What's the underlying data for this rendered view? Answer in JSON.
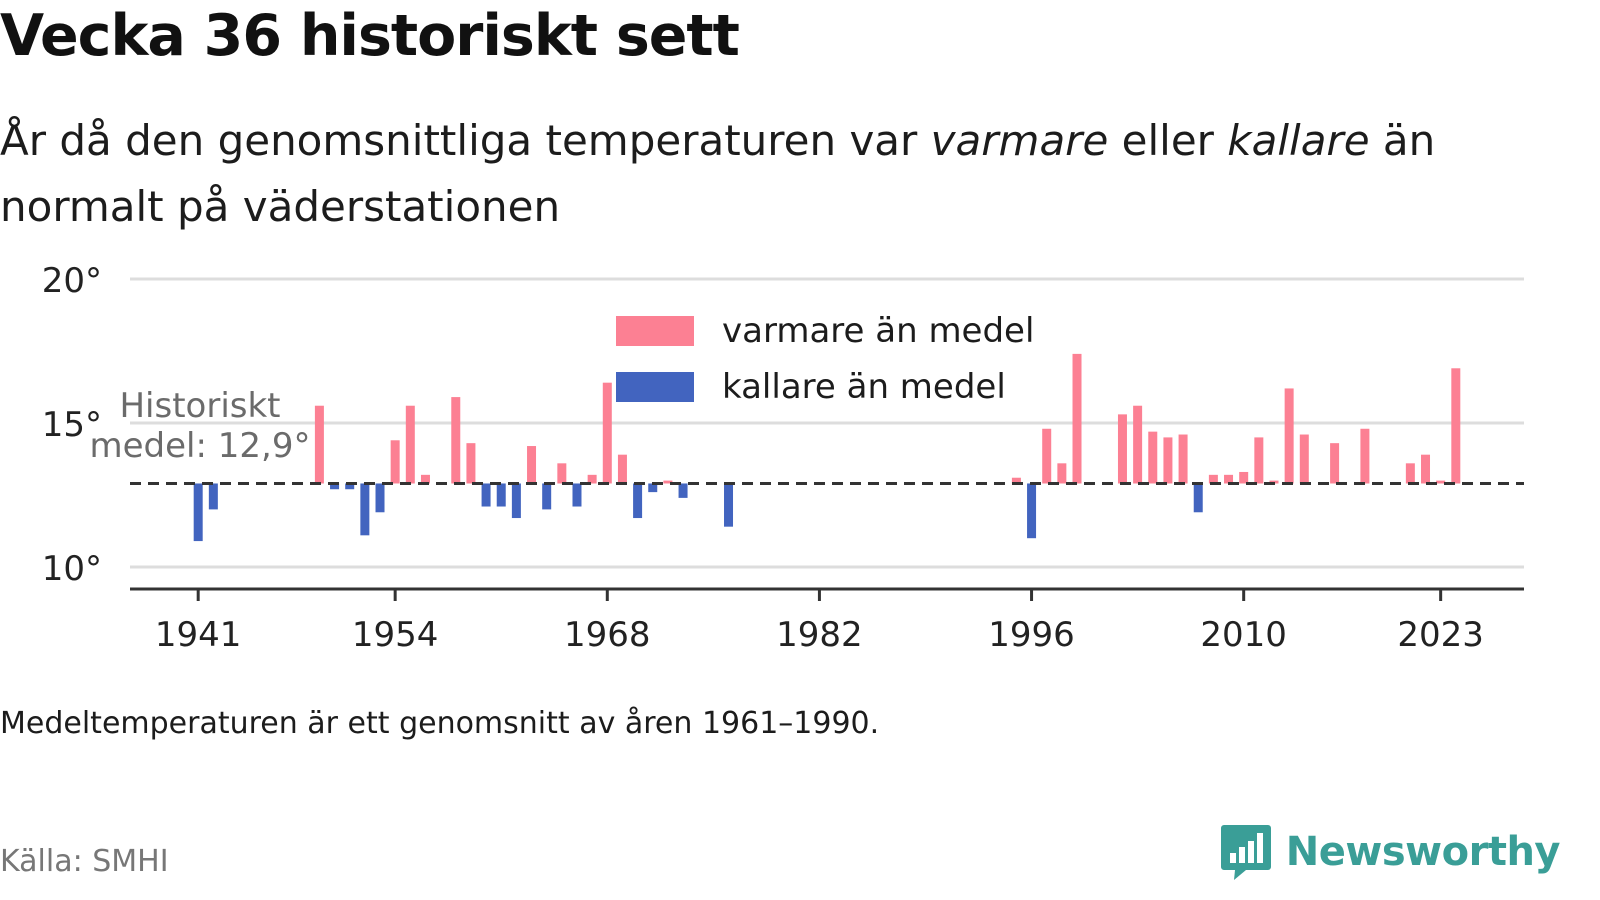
{
  "title": "Vecka 36 historiskt sett",
  "subtitle": {
    "part1": "År då den genomsnittliga temperaturen var ",
    "warm_word": "varmare",
    "part2": " eller ",
    "cold_word": "kallare",
    "part3": " än normalt på väderstationen"
  },
  "note": "Medeltemperaturen är ett genomsnitt av åren 1961–1990.",
  "source": "Källa: SMHI",
  "brand": {
    "name": "Newsworthy",
    "icon": "newsworthy-logo-icon"
  },
  "colors": {
    "warm": "#fc8093",
    "cold": "#4264bf",
    "grid": "#dddddd",
    "axis": "#333333",
    "brand": "#3a9e97"
  },
  "chart_data": {
    "type": "bar",
    "baseline": 12.9,
    "baseline_label": [
      "Historiskt",
      "medel: 12,9°"
    ],
    "ylim": [
      10,
      20
    ],
    "yticks": [
      10,
      15,
      20
    ],
    "ytick_labels": [
      "10°",
      "15°",
      "20°"
    ],
    "xlim": [
      1936.5,
      2028.5
    ],
    "xticks": [
      1941,
      1954,
      1968,
      1982,
      1996,
      2010,
      2023
    ],
    "legend": {
      "position": "top-center",
      "warm": "varmare än medel",
      "cold": "kallare än medel"
    },
    "grid": true,
    "values": [
      {
        "year": 1941,
        "value": 10.9
      },
      {
        "year": 1942,
        "value": 12.0
      },
      {
        "year": 1949,
        "value": 15.6
      },
      {
        "year": 1950,
        "value": 12.7
      },
      {
        "year": 1951,
        "value": 12.7
      },
      {
        "year": 1952,
        "value": 11.1
      },
      {
        "year": 1953,
        "value": 11.9
      },
      {
        "year": 1954,
        "value": 14.4
      },
      {
        "year": 1955,
        "value": 15.6
      },
      {
        "year": 1956,
        "value": 13.2
      },
      {
        "year": 1958,
        "value": 15.9
      },
      {
        "year": 1959,
        "value": 14.3
      },
      {
        "year": 1960,
        "value": 12.1
      },
      {
        "year": 1961,
        "value": 12.1
      },
      {
        "year": 1962,
        "value": 11.7
      },
      {
        "year": 1963,
        "value": 14.2
      },
      {
        "year": 1964,
        "value": 12.0
      },
      {
        "year": 1965,
        "value": 13.6
      },
      {
        "year": 1966,
        "value": 12.1
      },
      {
        "year": 1967,
        "value": 13.2
      },
      {
        "year": 1968,
        "value": 16.4
      },
      {
        "year": 1969,
        "value": 13.9
      },
      {
        "year": 1970,
        "value": 11.7
      },
      {
        "year": 1971,
        "value": 12.6
      },
      {
        "year": 1972,
        "value": 13.0
      },
      {
        "year": 1973,
        "value": 12.4
      },
      {
        "year": 1976,
        "value": 11.4
      },
      {
        "year": 1995,
        "value": 13.1
      },
      {
        "year": 1996,
        "value": 11.0
      },
      {
        "year": 1997,
        "value": 14.8
      },
      {
        "year": 1998,
        "value": 13.6
      },
      {
        "year": 1999,
        "value": 17.4
      },
      {
        "year": 2002,
        "value": 15.3
      },
      {
        "year": 2003,
        "value": 15.6
      },
      {
        "year": 2004,
        "value": 14.7
      },
      {
        "year": 2005,
        "value": 14.5
      },
      {
        "year": 2006,
        "value": 14.6
      },
      {
        "year": 2007,
        "value": 11.9
      },
      {
        "year": 2008,
        "value": 13.2
      },
      {
        "year": 2009,
        "value": 13.2
      },
      {
        "year": 2010,
        "value": 13.3
      },
      {
        "year": 2011,
        "value": 14.5
      },
      {
        "year": 2012,
        "value": 13.0
      },
      {
        "year": 2013,
        "value": 16.2
      },
      {
        "year": 2014,
        "value": 14.6
      },
      {
        "year": 2016,
        "value": 14.3
      },
      {
        "year": 2018,
        "value": 14.8
      },
      {
        "year": 2021,
        "value": 13.6
      },
      {
        "year": 2022,
        "value": 13.9
      },
      {
        "year": 2023,
        "value": 13.0
      },
      {
        "year": 2024,
        "value": 16.9
      }
    ]
  }
}
